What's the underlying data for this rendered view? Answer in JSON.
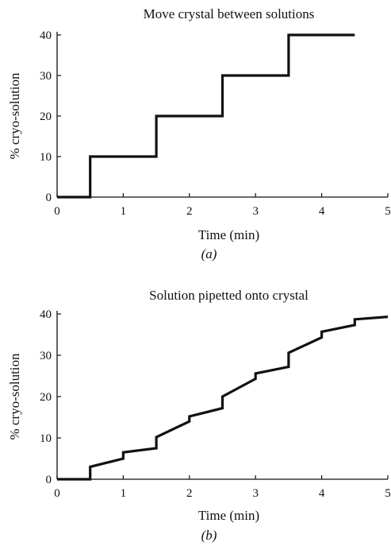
{
  "chart_data": [
    {
      "type": "line",
      "title": "Move crystal between solutions",
      "xlabel": "Time (min)",
      "ylabel": "% cryo-solution",
      "panel_label": "(a)",
      "xlim": [
        0,
        5
      ],
      "ylim": [
        0,
        40
      ],
      "x_ticks": [
        "0",
        "1",
        "2",
        "3",
        "4",
        "5"
      ],
      "y_ticks": [
        "0",
        "10",
        "20",
        "30",
        "40"
      ],
      "series": [
        {
          "x": [
            0,
            0.5,
            0.5,
            1.5,
            1.5,
            2.5,
            2.5,
            3.5,
            3.5,
            4.5
          ],
          "y": [
            0,
            0,
            10,
            10,
            20,
            20,
            30,
            30,
            40,
            40
          ]
        }
      ]
    },
    {
      "type": "line",
      "title": "Solution pipetted onto crystal",
      "xlabel": "Time (min)",
      "ylabel": "% cryo-solution",
      "panel_label": "(b)",
      "xlim": [
        0,
        5
      ],
      "ylim": [
        0,
        40
      ],
      "x_ticks": [
        "0",
        "1",
        "2",
        "3",
        "4",
        "5"
      ],
      "y_ticks": [
        "0",
        "10",
        "20",
        "30",
        "40"
      ],
      "series": [
        {
          "x": [
            0,
            0.5,
            0.5,
            1.0,
            1.0,
            1.5,
            1.5,
            2.0,
            2.0,
            2.5,
            2.5,
            3.0,
            3.0,
            3.5,
            3.5,
            4.0,
            4.0,
            4.5,
            4.5,
            5.0
          ],
          "y": [
            0,
            0,
            3,
            5,
            6.5,
            7.5,
            10.2,
            14,
            15.2,
            17.2,
            20,
            24.3,
            25.6,
            27.2,
            30.6,
            34.3,
            35.7,
            37.3,
            38.7,
            39.3
          ]
        }
      ]
    }
  ]
}
